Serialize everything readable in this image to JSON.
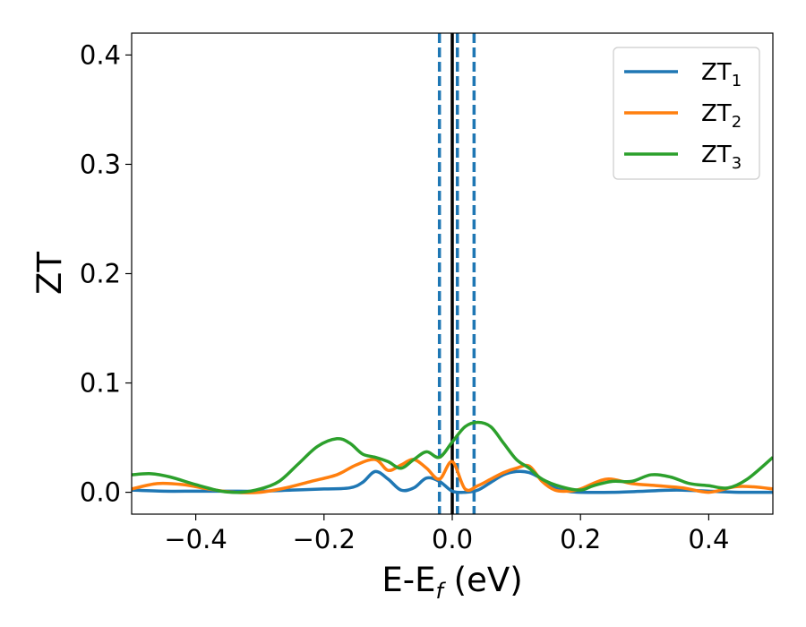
{
  "chart_data": {
    "type": "line",
    "xlabel": "E-E",
    "xlabel_sub": "f",
    "xlabel_unit": " (eV)",
    "ylabel": "ZT",
    "xlim": [
      -0.5,
      0.5
    ],
    "ylim": [
      -0.02,
      0.42
    ],
    "xticks": [
      -0.4,
      -0.2,
      0.0,
      0.2,
      0.4
    ],
    "xtick_labels": [
      "−0.4",
      "−0.2",
      "0.0",
      "0.2",
      "0.4"
    ],
    "yticks": [
      0.0,
      0.1,
      0.2,
      0.3,
      0.4
    ],
    "ytick_labels": [
      "0.0",
      "0.1",
      "0.2",
      "0.3",
      "0.4"
    ],
    "grid": false,
    "legend_position": "top-right",
    "vlines": [
      {
        "x": 0.0,
        "style": "solid",
        "color": "#000000"
      },
      {
        "x": -0.02,
        "style": "dashed",
        "color": "#1f77b4"
      },
      {
        "x": 0.008,
        "style": "dashed",
        "color": "#1f77b4"
      },
      {
        "x": 0.034,
        "style": "dashed",
        "color": "#1f77b4"
      }
    ],
    "series": [
      {
        "name": "ZT",
        "name_sub": "1",
        "color": "#1f77b4",
        "x": [
          -0.5,
          -0.45,
          -0.4,
          -0.35,
          -0.3,
          -0.25,
          -0.2,
          -0.16,
          -0.14,
          -0.12,
          -0.1,
          -0.08,
          -0.06,
          -0.04,
          -0.02,
          0.0,
          0.02,
          0.04,
          0.06,
          0.08,
          0.1,
          0.12,
          0.14,
          0.16,
          0.18,
          0.2,
          0.25,
          0.3,
          0.35,
          0.4,
          0.45,
          0.5
        ],
        "y": [
          0.002,
          0.001,
          0.001,
          0.001,
          0.001,
          0.002,
          0.003,
          0.004,
          0.009,
          0.019,
          0.012,
          0.002,
          0.004,
          0.013,
          0.01,
          0.001,
          0.0,
          0.002,
          0.009,
          0.016,
          0.019,
          0.018,
          0.012,
          0.004,
          0.001,
          0.0,
          0.0,
          0.001,
          0.002,
          0.001,
          0.0,
          0.0
        ]
      },
      {
        "name": "ZT",
        "name_sub": "2",
        "color": "#ff7f0e",
        "x": [
          -0.5,
          -0.46,
          -0.42,
          -0.38,
          -0.34,
          -0.3,
          -0.26,
          -0.22,
          -0.18,
          -0.15,
          -0.12,
          -0.1,
          -0.08,
          -0.06,
          -0.04,
          -0.02,
          0.0,
          0.02,
          0.04,
          0.06,
          0.08,
          0.1,
          0.12,
          0.14,
          0.16,
          0.18,
          0.2,
          0.24,
          0.28,
          0.32,
          0.36,
          0.4,
          0.44,
          0.47,
          0.5
        ],
        "y": [
          0.003,
          0.008,
          0.007,
          0.003,
          0.0,
          0.0,
          0.004,
          0.01,
          0.016,
          0.025,
          0.03,
          0.02,
          0.025,
          0.03,
          0.022,
          0.012,
          0.028,
          0.003,
          0.006,
          0.012,
          0.018,
          0.022,
          0.024,
          0.01,
          0.002,
          0.001,
          0.003,
          0.012,
          0.008,
          0.006,
          0.004,
          0.0,
          0.005,
          0.005,
          0.003
        ]
      },
      {
        "name": "ZT",
        "name_sub": "3",
        "color": "#2ca02c",
        "x": [
          -0.5,
          -0.47,
          -0.44,
          -0.4,
          -0.36,
          -0.33,
          -0.3,
          -0.27,
          -0.24,
          -0.21,
          -0.18,
          -0.16,
          -0.14,
          -0.12,
          -0.1,
          -0.08,
          -0.06,
          -0.04,
          -0.02,
          0.0,
          0.02,
          0.04,
          0.06,
          0.08,
          0.1,
          0.12,
          0.14,
          0.17,
          0.2,
          0.22,
          0.25,
          0.28,
          0.31,
          0.34,
          0.37,
          0.4,
          0.43,
          0.46,
          0.5
        ],
        "y": [
          0.016,
          0.017,
          0.014,
          0.007,
          0.001,
          0.0,
          0.003,
          0.01,
          0.026,
          0.042,
          0.049,
          0.045,
          0.035,
          0.032,
          0.028,
          0.022,
          0.03,
          0.037,
          0.032,
          0.046,
          0.06,
          0.064,
          0.06,
          0.045,
          0.03,
          0.022,
          0.012,
          0.005,
          0.002,
          0.006,
          0.01,
          0.01,
          0.016,
          0.014,
          0.008,
          0.006,
          0.004,
          0.012,
          0.032
        ]
      }
    ]
  }
}
